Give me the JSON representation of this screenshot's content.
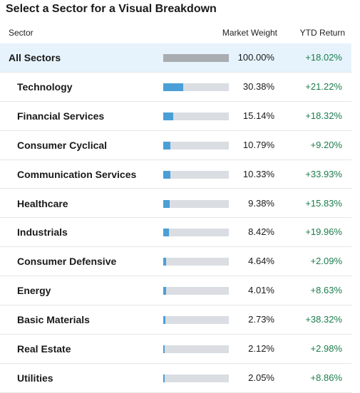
{
  "title": "Select a Sector for a Visual Breakdown",
  "table": {
    "headers": [
      "Sector",
      "Market Weight",
      "YTD Return"
    ],
    "rows": [
      {
        "sector": "All Sectors",
        "weight": {
          "value": 100.0,
          "label": "100.00%"
        },
        "ytd": "+18.02%"
      },
      {
        "sector": "Technology",
        "weight": {
          "value": 30.38,
          "label": "30.38%"
        },
        "ytd": "+21.22%"
      },
      {
        "sector": "Financial Services",
        "weight": {
          "value": 15.14,
          "label": "15.14%"
        },
        "ytd": "+18.32%"
      },
      {
        "sector": "Consumer Cyclical",
        "weight": {
          "value": 10.79,
          "label": "10.79%"
        },
        "ytd": "+9.20%"
      },
      {
        "sector": "Communication Services",
        "weight": {
          "value": 10.33,
          "label": "10.33%"
        },
        "ytd": "+33.93%"
      },
      {
        "sector": "Healthcare",
        "weight": {
          "value": 9.38,
          "label": "9.38%"
        },
        "ytd": "+15.83%"
      },
      {
        "sector": "Industrials",
        "weight": {
          "value": 8.42,
          "label": "8.42%"
        },
        "ytd": "+19.96%"
      },
      {
        "sector": "Consumer Defensive",
        "weight": {
          "value": 4.64,
          "label": "4.64%"
        },
        "ytd": "+2.09%"
      },
      {
        "sector": "Energy",
        "weight": {
          "value": 4.01,
          "label": "4.01%"
        },
        "ytd": "+8.63%"
      },
      {
        "sector": "Basic Materials",
        "weight": {
          "value": 2.73,
          "label": "2.73%"
        },
        "ytd": "+38.32%"
      },
      {
        "sector": "Real Estate",
        "weight": {
          "value": 2.12,
          "label": "2.12%"
        },
        "ytd": "+2.98%"
      },
      {
        "sector": "Utilities",
        "weight": {
          "value": 2.05,
          "label": "2.05%"
        },
        "ytd": "+8.86%"
      }
    ]
  }
}
